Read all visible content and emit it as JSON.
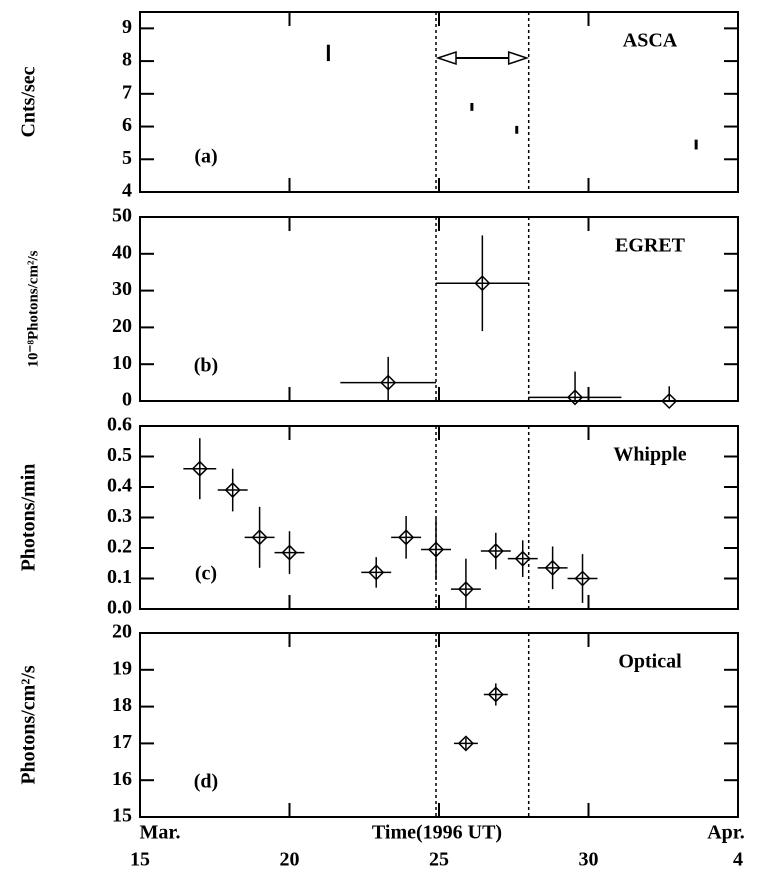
{
  "chart_data": [
    {
      "type": "scatter",
      "title": "ASCA",
      "panel_label": "(a)",
      "ylabel": "Cnts/sec",
      "marker": "none",
      "xlim": [
        15,
        35
      ],
      "xticks": [
        15,
        20,
        25,
        30,
        35
      ],
      "ylim": [
        4,
        9.5
      ],
      "yticks": [
        4,
        5,
        6,
        7,
        8,
        9
      ],
      "vlines": [
        24.9,
        28.0
      ],
      "color": "#000000",
      "x": [
        21.3,
        26.1,
        27.6,
        33.6
      ],
      "y": [
        8.25,
        6.6,
        5.9,
        5.45
      ],
      "yerr": [
        0.25,
        0.12,
        0.12,
        0.15
      ],
      "xerr": [
        0,
        0,
        0,
        0
      ]
    },
    {
      "type": "scatter",
      "title": "EGRET",
      "panel_label": "(b)",
      "ylabel": "10⁻⁸Photons/cm²/s",
      "marker": "diamond",
      "xlim": [
        15,
        35
      ],
      "xticks": [
        15,
        20,
        25,
        30,
        35
      ],
      "ylim": [
        0,
        50
      ],
      "yticks": [
        0,
        10,
        20,
        30,
        40,
        50
      ],
      "vlines": [
        24.9,
        28.0
      ],
      "color": "#000000",
      "x": [
        23.3,
        26.45,
        29.55,
        32.7
      ],
      "y": [
        5,
        32,
        1,
        0
      ],
      "yerr": [
        7,
        13,
        7,
        4
      ],
      "xerr": [
        1.6,
        1.55,
        1.55,
        0
      ]
    },
    {
      "type": "scatter",
      "title": "Whipple",
      "panel_label": "(c)",
      "ylabel": "Photons/min",
      "marker": "diamond",
      "xlim": [
        15,
        35
      ],
      "xticks": [
        15,
        20,
        25,
        30,
        35
      ],
      "ylim": [
        0,
        0.6
      ],
      "yticks": [
        {
          "value": 0,
          "label": "0.0"
        },
        0.1,
        0.2,
        0.3,
        0.4,
        0.5,
        0.6
      ],
      "vlines": [
        24.9,
        28.0
      ],
      "color": "#000000",
      "x": [
        17.0,
        18.1,
        19.0,
        20.0,
        22.9,
        23.9,
        24.9,
        25.9,
        26.9,
        27.8,
        28.8,
        29.8
      ],
      "y": [
        0.46,
        0.39,
        0.235,
        0.185,
        0.12,
        0.235,
        0.195,
        0.065,
        0.19,
        0.165,
        0.135,
        0.1
      ],
      "yerr": [
        0.1,
        0.07,
        0.1,
        0.07,
        0.05,
        0.07,
        0.1,
        0.1,
        0.06,
        0.06,
        0.07,
        0.08
      ],
      "xerr": [
        0.55,
        0.5,
        0.5,
        0.5,
        0.5,
        0.5,
        0.5,
        0.5,
        0.5,
        0.5,
        0.5,
        0.5
      ]
    },
    {
      "type": "scatter",
      "title": "Optical",
      "panel_label": "(d)",
      "ylabel": "Photons/cm²/s",
      "marker": "diamond",
      "xlim": [
        15,
        35
      ],
      "xticks": [
        15,
        20,
        25,
        30,
        {
          "value": 35,
          "label": "4"
        }
      ],
      "ylim": [
        15,
        20
      ],
      "yticks": [
        15,
        16,
        17,
        18,
        19,
        20
      ],
      "vlines": [
        24.9,
        28.0
      ],
      "color": "#000000",
      "xlabel": "Time(1996 UT)",
      "x_start_label": "Mar.",
      "x_end_label": "Apr.",
      "x": [
        25.9,
        26.9
      ],
      "y": [
        17.0,
        18.33
      ],
      "yerr": [
        0.15,
        0.3
      ],
      "xerr": [
        0.4,
        0.4
      ]
    }
  ]
}
